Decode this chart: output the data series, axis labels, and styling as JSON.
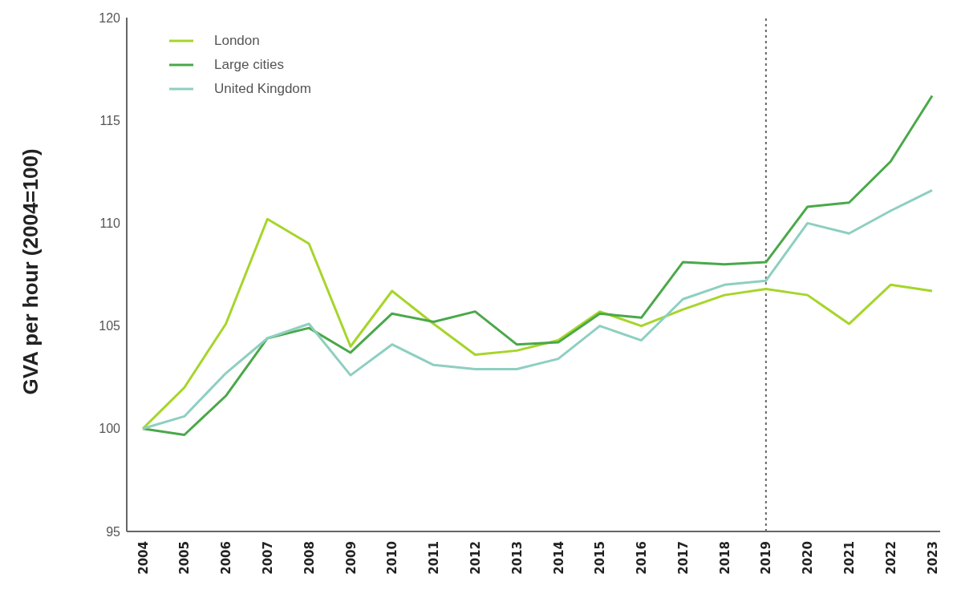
{
  "chart_data": {
    "type": "line",
    "ylabel": "GVA per hour (2004=100)",
    "categories": [
      "2004",
      "2005",
      "2006",
      "2007",
      "2008",
      "2009",
      "2010",
      "2011",
      "2012",
      "2013",
      "2014",
      "2015",
      "2016",
      "2017",
      "2018",
      "2019",
      "2020",
      "2021",
      "2022",
      "2023"
    ],
    "series": [
      {
        "name": "London",
        "color": "#a6d52a",
        "values": [
          100,
          102.0,
          105.1,
          110.2,
          109.0,
          104.0,
          106.7,
          105.1,
          103.6,
          103.8,
          104.3,
          105.7,
          105.0,
          105.8,
          106.5,
          106.8,
          106.5,
          105.1,
          107.0,
          106.7
        ]
      },
      {
        "name": "Large cities",
        "color": "#4aa84a",
        "values": [
          100,
          99.7,
          101.6,
          104.4,
          104.9,
          103.7,
          105.6,
          105.2,
          105.7,
          104.1,
          104.2,
          105.6,
          105.4,
          108.1,
          108.0,
          108.1,
          110.8,
          111.0,
          113.0,
          116.2
        ]
      },
      {
        "name": "United Kingdom",
        "color": "#8ecfc0",
        "values": [
          100,
          100.6,
          102.7,
          104.4,
          105.1,
          102.6,
          104.1,
          103.1,
          102.9,
          102.9,
          103.4,
          105.0,
          104.3,
          106.3,
          107.0,
          107.2,
          110.0,
          109.5,
          110.6,
          111.6
        ]
      }
    ],
    "ylim": [
      95,
      120
    ],
    "yticks": [
      95,
      100,
      105,
      110,
      115,
      120
    ],
    "grid": false,
    "legend": "top left",
    "marker": "none",
    "line_style": "solid",
    "ref_lines": [
      {
        "axis": "x",
        "value": "2019",
        "color": "#666666",
        "line_style": "dotted"
      }
    ]
  }
}
